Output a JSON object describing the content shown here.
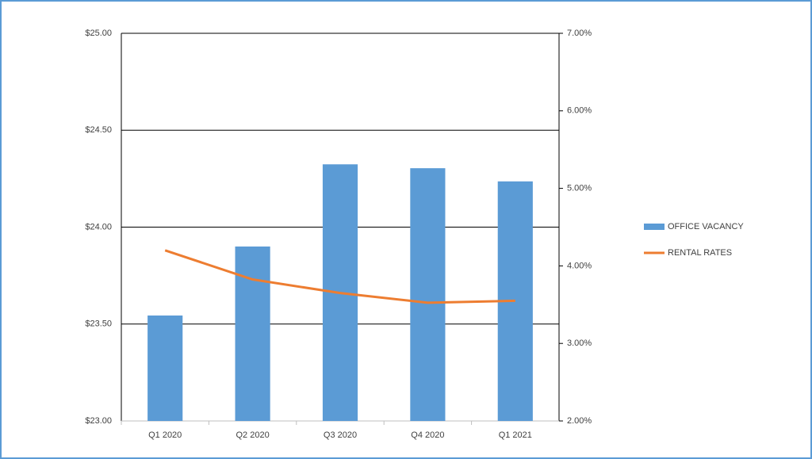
{
  "chart_data": {
    "type": "bar-line",
    "categories": [
      "Q1 2020",
      "Q2 2020",
      "Q3 2020",
      "Q4 2020",
      "Q1 2021"
    ],
    "series": [
      {
        "name": "OFFICE VACANCY",
        "type": "bar",
        "axis": "y2",
        "color": "#5b9bd5",
        "values": [
          3.36,
          4.25,
          5.31,
          5.26,
          5.09
        ]
      },
      {
        "name": "RENTAL RATES",
        "type": "line",
        "axis": "y",
        "color": "#ed7d31",
        "values": [
          23.88,
          23.73,
          23.66,
          23.61,
          23.62
        ]
      }
    ],
    "ylim": [
      23,
      25
    ],
    "yticks": [
      {
        "value": 23,
        "label": "$23.00"
      },
      {
        "value": 23.5,
        "label": "$23.50"
      },
      {
        "value": 24,
        "label": "$24.00"
      },
      {
        "value": 24.5,
        "label": "$24.50"
      },
      {
        "value": 25,
        "label": "$25.00"
      }
    ],
    "y2lim": [
      2,
      7
    ],
    "y2ticks": [
      {
        "value": 2,
        "label": "2.00%"
      },
      {
        "value": 3,
        "label": "3.00%"
      },
      {
        "value": 4,
        "label": "4.00%"
      },
      {
        "value": 5,
        "label": "5.00%"
      },
      {
        "value": 6,
        "label": "6.00%"
      },
      {
        "value": 7,
        "label": "7.00%"
      }
    ],
    "grid": true,
    "legend": "right"
  }
}
